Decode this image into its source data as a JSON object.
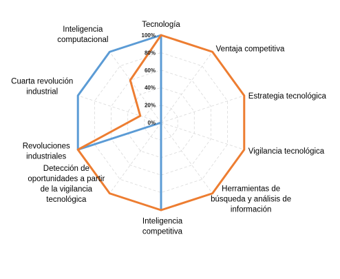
{
  "chart_data": {
    "type": "radar",
    "title": "",
    "categories": [
      "Tecnología",
      "Ventaja competitiva",
      "Estrategia tecnológica",
      "Vigilancia tecnológica",
      "Herramientas de búsqueda y análisis de información",
      "Inteligencia competitiva",
      "Detección de oportunidades a partir de la vigilancia tecnológica",
      "Revoluciones industriales",
      "Cuarta revolución industrial",
      "Inteligencia computacional"
    ],
    "category_lines": [
      [
        "Tecnología"
      ],
      [
        "Ventaja competitiva"
      ],
      [
        "Estrategia tecnológica"
      ],
      [
        "Vigilancia tecnológica"
      ],
      [
        "Herramientas de",
        "búsqueda y análisis de",
        "información"
      ],
      [
        "Inteligencia",
        "competitiva"
      ],
      [
        "Detección de",
        "oportunidades a partir",
        "de la vigilancia",
        "tecnológica"
      ],
      [
        "Revoluciones",
        "industriales"
      ],
      [
        "Cuarta revolución",
        "industrial"
      ],
      [
        "Inteligencia",
        "computacional"
      ]
    ],
    "r_ticks": [
      "0%",
      "20%",
      "40%",
      "60%",
      "80%",
      "100%"
    ],
    "r_range": [
      0,
      1
    ],
    "grid": true,
    "legend": "none",
    "series": [
      {
        "color": "#5B9BD5",
        "values": [
          1.0,
          0.0,
          0.0,
          0.0,
          0.0,
          1.0,
          0.0,
          1.0,
          1.0,
          1.0
        ]
      },
      {
        "color": "#ED7D31",
        "values": [
          1.0,
          1.0,
          1.0,
          1.0,
          1.0,
          1.0,
          1.0,
          1.0,
          0.25,
          0.6
        ]
      }
    ]
  }
}
